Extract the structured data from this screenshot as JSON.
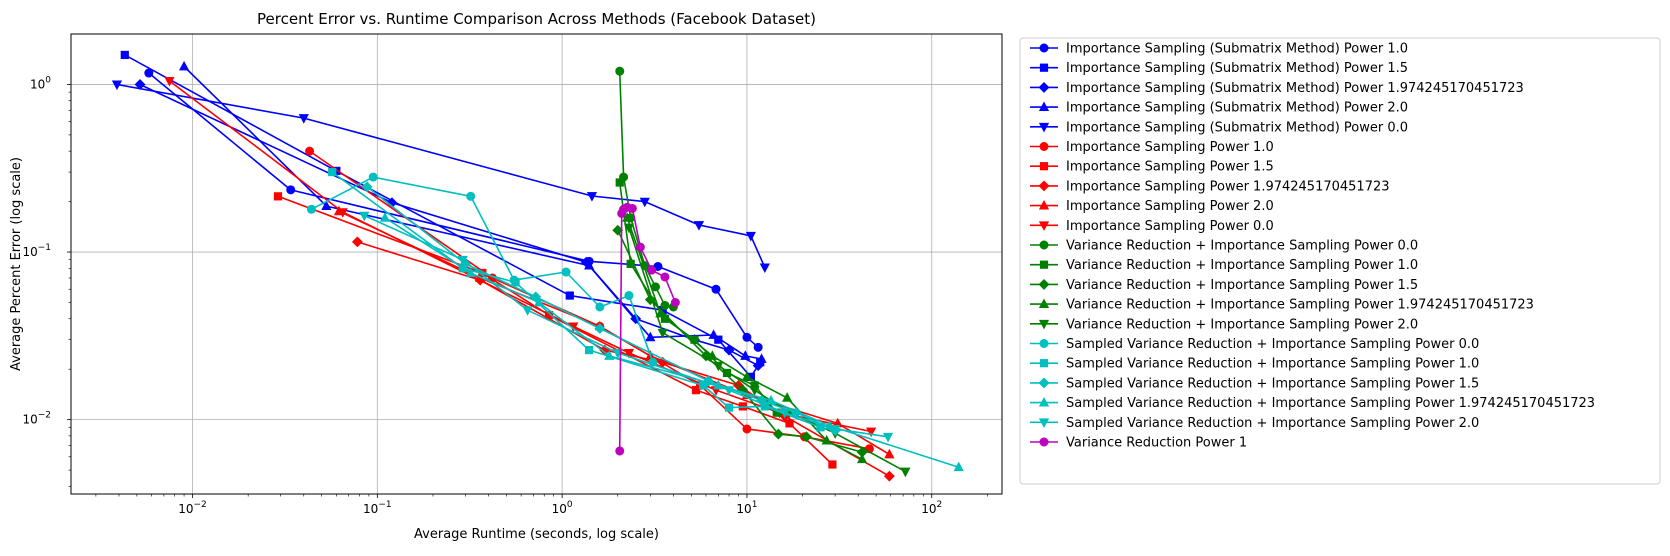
{
  "chart_data": {
    "type": "line",
    "title": "Percent Error vs. Runtime Comparison Across Methods (Facebook Dataset)",
    "xlabel": "Average Runtime (seconds, log scale)",
    "ylabel": "Average Percent Error (log scale)",
    "xscale": "log",
    "yscale": "log",
    "xlim": [
      0.0022,
      240
    ],
    "ylim": [
      0.0036,
      2.0
    ],
    "grid": true,
    "legend_position": "outside-right",
    "x_ticks": [
      {
        "value": 0.01,
        "base": "10",
        "exp": "−2"
      },
      {
        "value": 0.1,
        "base": "10",
        "exp": "−1"
      },
      {
        "value": 1,
        "base": "10",
        "exp": "0"
      },
      {
        "value": 10,
        "base": "10",
        "exp": "1"
      },
      {
        "value": 100,
        "base": "10",
        "exp": "2"
      }
    ],
    "y_ticks": [
      {
        "value": 0.01,
        "base": "10",
        "exp": "−2"
      },
      {
        "value": 0.1,
        "base": "10",
        "exp": "−1"
      },
      {
        "value": 1,
        "base": "10",
        "exp": "0"
      }
    ],
    "series": [
      {
        "name": "Importance Sampling (Submatrix Method) Power 1.0",
        "color": "#0000ff",
        "marker": "circle",
        "x": [
          0.0058,
          0.034,
          1.4,
          3.3,
          6.8,
          10.0,
          11.5
        ],
        "y": [
          1.17,
          0.235,
          0.088,
          0.082,
          0.06,
          0.031,
          0.027
        ]
      },
      {
        "name": "Importance Sampling (Submatrix Method) Power 1.5",
        "color": "#0000ff",
        "marker": "square",
        "x": [
          0.0043,
          0.06,
          1.1,
          3.5,
          7.0,
          10.5,
          11.8
        ],
        "y": [
          1.5,
          0.305,
          0.055,
          0.045,
          0.03,
          0.018,
          0.022
        ]
      },
      {
        "name": "Importance Sampling (Submatrix Method) Power 1.974245170451723",
        "color": "#0000ff",
        "marker": "diamond",
        "x": [
          0.0052,
          0.12,
          1.35,
          2.5,
          5.2,
          8.0,
          11.5
        ],
        "y": [
          1.0,
          0.197,
          0.087,
          0.04,
          0.03,
          0.026,
          0.021
        ]
      },
      {
        "name": "Importance Sampling (Submatrix Method) Power 2.0",
        "color": "#0000ff",
        "marker": "triangle-up",
        "x": [
          0.009,
          0.053,
          1.4,
          3.0,
          6.6,
          9.8,
          12.0
        ],
        "y": [
          1.28,
          0.188,
          0.083,
          0.031,
          0.032,
          0.024,
          0.023
        ]
      },
      {
        "name": "Importance Sampling (Submatrix Method) Power 0.0",
        "color": "#0000ff",
        "marker": "triangle-down",
        "x": [
          0.0039,
          0.04,
          1.45,
          2.8,
          5.5,
          10.5,
          12.5
        ],
        "y": [
          1.0,
          0.63,
          0.216,
          0.2,
          0.145,
          0.125,
          0.081
        ]
      },
      {
        "name": "Importance Sampling Power 1.0",
        "color": "#ff0000",
        "marker": "circle",
        "x": [
          0.043,
          0.42,
          1.6,
          5.6,
          10.0,
          20.5,
          46.0
        ],
        "y": [
          0.4,
          0.07,
          0.036,
          0.016,
          0.0088,
          0.0079,
          0.0067
        ]
      },
      {
        "name": "Importance Sampling Power 1.5",
        "color": "#ff0000",
        "marker": "square",
        "x": [
          0.029,
          0.37,
          0.85,
          5.3,
          9.5,
          17.0,
          29.0
        ],
        "y": [
          0.215,
          0.075,
          0.042,
          0.015,
          0.012,
          0.0095,
          0.0054
        ]
      },
      {
        "name": "Importance Sampling Power 1.974245170451723",
        "color": "#ff0000",
        "marker": "diamond",
        "x": [
          0.078,
          0.36,
          1.7,
          3.5,
          9.0,
          16.0,
          59.0
        ],
        "y": [
          0.115,
          0.068,
          0.026,
          0.022,
          0.016,
          0.0105,
          0.0046
        ]
      },
      {
        "name": "Importance Sampling Power 2.0",
        "color": "#ff0000",
        "marker": "triangle-up",
        "x": [
          0.062,
          0.36,
          1.6,
          3.0,
          10.0,
          31.0,
          59.0
        ],
        "y": [
          0.175,
          0.07,
          0.036,
          0.024,
          0.014,
          0.0095,
          0.0062
        ]
      },
      {
        "name": "Importance Sampling Power 0.0",
        "color": "#ff0000",
        "marker": "triangle-down",
        "x": [
          0.0075,
          0.065,
          1.15,
          2.3,
          6.8,
          15.0,
          47.0
        ],
        "y": [
          1.05,
          0.173,
          0.036,
          0.025,
          0.015,
          0.011,
          0.0085
        ]
      },
      {
        "name": "Variance Reduction + Importance Sampling Power 0.0",
        "color": "#008000",
        "marker": "circle",
        "x": [
          2.05,
          2.15,
          2.35,
          2.8,
          3.2,
          3.6,
          4.0
        ],
        "y": [
          1.2,
          0.28,
          0.16,
          0.083,
          0.062,
          0.048,
          0.047
        ]
      },
      {
        "name": "Variance Reduction + Importance Sampling Power 1.0",
        "color": "#008000",
        "marker": "square",
        "x": [
          2.05,
          2.35,
          3.6,
          5.2,
          7.8,
          11.0,
          14.5
        ],
        "y": [
          0.26,
          0.085,
          0.04,
          0.03,
          0.019,
          0.016,
          0.011
        ]
      },
      {
        "name": "Variance Reduction + Importance Sampling Power 1.5",
        "color": "#008000",
        "marker": "diamond",
        "x": [
          2.0,
          3.0,
          6.0,
          9.5,
          14.8,
          21.0,
          42.0
        ],
        "y": [
          0.135,
          0.052,
          0.024,
          0.015,
          0.0082,
          0.0079,
          0.0064
        ]
      },
      {
        "name": "Variance Reduction + Importance Sampling Power 1.974245170451723",
        "color": "#008000",
        "marker": "triangle-up",
        "x": [
          2.25,
          3.4,
          6.5,
          10.0,
          16.5,
          27.0,
          42.0
        ],
        "y": [
          0.16,
          0.043,
          0.024,
          0.018,
          0.0135,
          0.0075,
          0.0058
        ]
      },
      {
        "name": "Variance Reduction + Importance Sampling Power 2.0",
        "color": "#008000",
        "marker": "triangle-down",
        "x": [
          2.3,
          3.5,
          7.0,
          11.0,
          17.0,
          30.0,
          72.0
        ],
        "y": [
          0.14,
          0.033,
          0.021,
          0.015,
          0.011,
          0.0083,
          0.0049
        ]
      },
      {
        "name": "Sampled Variance Reduction + Importance Sampling Power 0.0",
        "color": "#00bfbf",
        "marker": "circle",
        "x": [
          0.044,
          0.095,
          0.32,
          0.55,
          1.05,
          1.6,
          2.3,
          3.1
        ],
        "y": [
          0.18,
          0.28,
          0.215,
          0.068,
          0.076,
          0.047,
          0.055,
          0.022
        ]
      },
      {
        "name": "Sampled Variance Reduction + Importance Sampling Power 1.0",
        "color": "#00bfbf",
        "marker": "square",
        "x": [
          0.057,
          0.29,
          0.56,
          1.4,
          5.8,
          8.0,
          12.5,
          25.0
        ],
        "y": [
          0.3,
          0.08,
          0.066,
          0.026,
          0.016,
          0.0118,
          0.012,
          0.009
        ]
      },
      {
        "name": "Sampled Variance Reduction + Importance Sampling Power 1.5",
        "color": "#00bfbf",
        "marker": "diamond",
        "x": [
          0.088,
          0.3,
          0.72,
          1.6,
          6.2,
          12.0,
          18.5,
          30.0
        ],
        "y": [
          0.245,
          0.085,
          0.054,
          0.035,
          0.017,
          0.013,
          0.011,
          0.0086
        ]
      },
      {
        "name": "Sampled Variance Reduction + Importance Sampling Power 1.974245170451723",
        "color": "#00bfbf",
        "marker": "triangle-up",
        "x": [
          0.11,
          0.32,
          0.75,
          1.8,
          7.0,
          13.5,
          28.0,
          140.0
        ],
        "y": [
          0.16,
          0.075,
          0.05,
          0.024,
          0.016,
          0.013,
          0.0092,
          0.0052
        ]
      },
      {
        "name": "Sampled Variance Reduction + Importance Sampling Power 2.0",
        "color": "#00bfbf",
        "marker": "triangle-down",
        "x": [
          0.085,
          0.29,
          0.65,
          2.0,
          8.0,
          16.0,
          30.0,
          58.0
        ],
        "y": [
          0.165,
          0.09,
          0.045,
          0.025,
          0.015,
          0.011,
          0.0088,
          0.0079
        ]
      },
      {
        "name": "Variance Reduction Power 1",
        "color": "#bf00bf",
        "marker": "circle",
        "x": [
          2.05,
          2.1,
          2.15,
          2.25,
          2.4,
          2.65,
          3.05,
          3.6,
          4.1
        ],
        "y": [
          0.0065,
          0.17,
          0.18,
          0.185,
          0.182,
          0.107,
          0.078,
          0.071,
          0.05
        ]
      }
    ]
  }
}
